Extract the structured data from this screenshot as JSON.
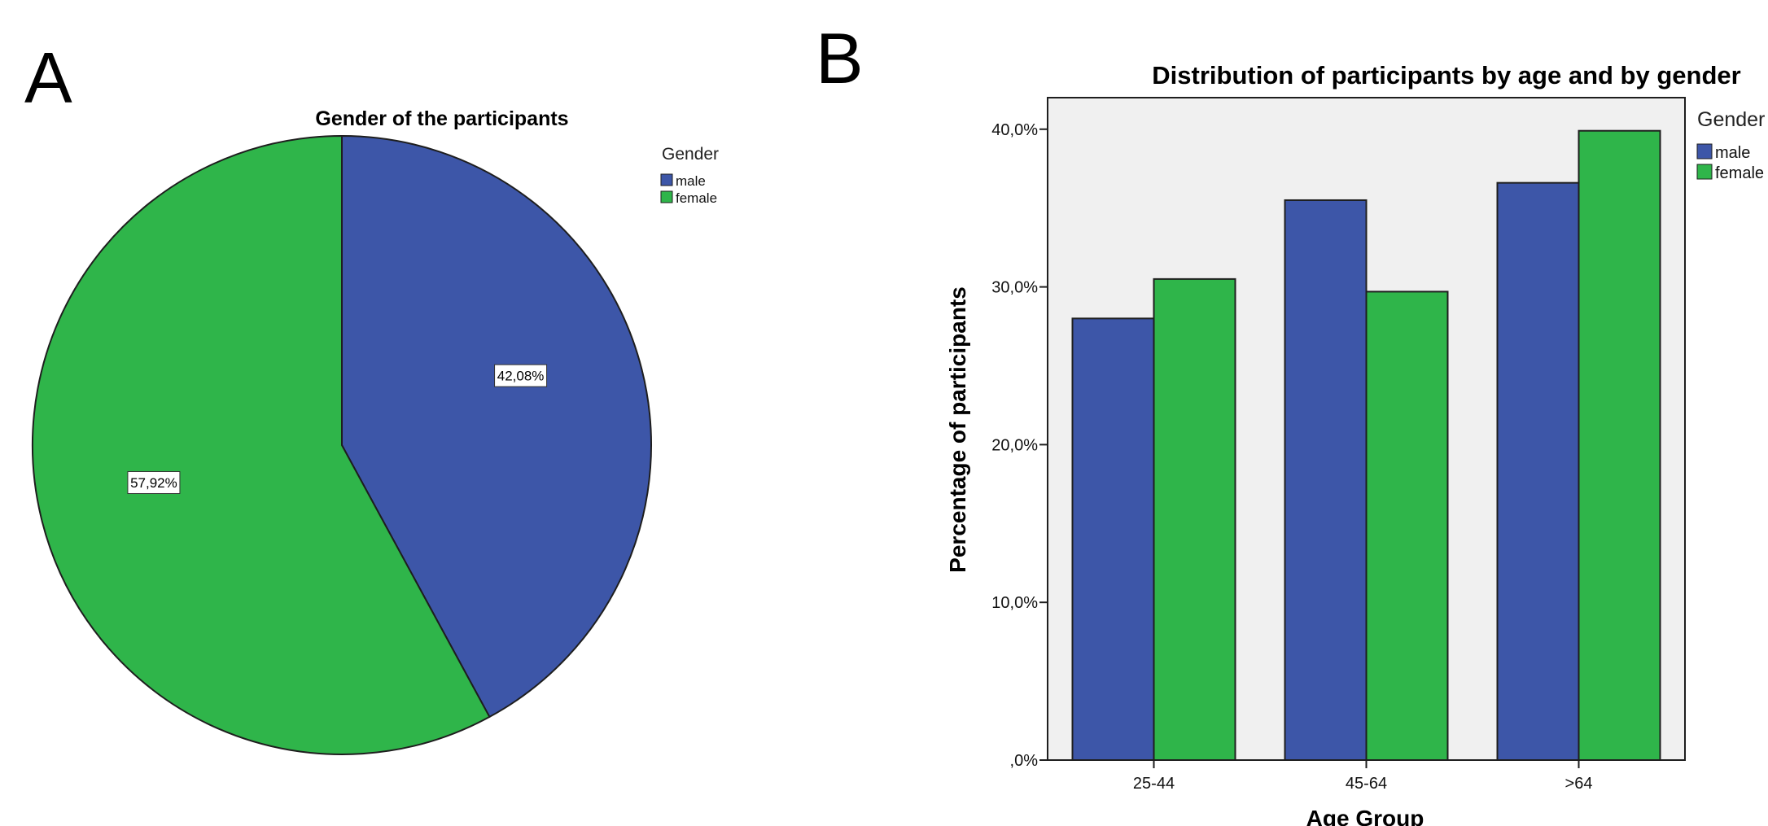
{
  "panels": {
    "a": {
      "letter": "A"
    },
    "b": {
      "letter": "B"
    }
  },
  "colors": {
    "male": "#3d56a8",
    "female": "#2fb54a",
    "plot_background": "#f0f0f0",
    "outline": "#1e1e1e"
  },
  "chart_data": [
    {
      "type": "pie",
      "title": "Gender of the participants",
      "legend_title": "Gender",
      "legend_position": "top-right",
      "slices": [
        {
          "label": "male",
          "value": 42.08,
          "value_label": "42,08%"
        },
        {
          "label": "female",
          "value": 57.92,
          "value_label": "57,92%"
        }
      ]
    },
    {
      "type": "bar",
      "title": "Distribution of participants by age and by gender",
      "xlabel": "Age Group",
      "ylabel": "Percentage of participants",
      "ylim": [
        0,
        42
      ],
      "yticks": [
        0,
        10,
        20,
        30,
        40
      ],
      "ytick_labels": [
        ",0%",
        "10,0%",
        "20,0%",
        "30,0%",
        "40,0%"
      ],
      "categories": [
        "25-44",
        "45-64",
        ">64"
      ],
      "legend_title": "Gender",
      "legend_position": "right",
      "grid": false,
      "series": [
        {
          "name": "male",
          "values": [
            28.0,
            35.5,
            36.6
          ]
        },
        {
          "name": "female",
          "values": [
            30.5,
            29.7,
            39.9
          ]
        }
      ]
    }
  ]
}
